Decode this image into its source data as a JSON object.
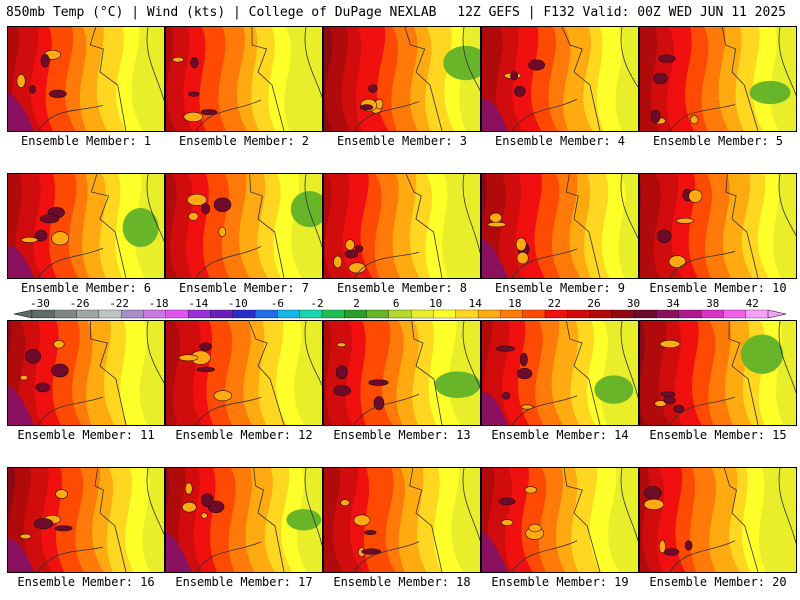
{
  "header": {
    "left": "850mb Temp (°C) | Wind (kts) | College of DuPage NEXLAB",
    "right": "12Z GEFS | F132 Valid: 00Z WED JUN 11 2025"
  },
  "members": [
    {
      "label": "Ensemble Member: 1"
    },
    {
      "label": "Ensemble Member: 2"
    },
    {
      "label": "Ensemble Member: 3"
    },
    {
      "label": "Ensemble Member: 4"
    },
    {
      "label": "Ensemble Member: 5"
    },
    {
      "label": "Ensemble Member: 6"
    },
    {
      "label": "Ensemble Member: 7"
    },
    {
      "label": "Ensemble Member: 8"
    },
    {
      "label": "Ensemble Member: 9"
    },
    {
      "label": "Ensemble Member: 10"
    },
    {
      "label": "Ensemble Member: 11"
    },
    {
      "label": "Ensemble Member: 12"
    },
    {
      "label": "Ensemble Member: 13"
    },
    {
      "label": "Ensemble Member: 14"
    },
    {
      "label": "Ensemble Member: 15"
    },
    {
      "label": "Ensemble Member: 16"
    },
    {
      "label": "Ensemble Member: 17"
    },
    {
      "label": "Ensemble Member: 18"
    },
    {
      "label": "Ensemble Member: 19"
    },
    {
      "label": "Ensemble Member: 20"
    }
  ],
  "colorbar": {
    "labels": [
      "-30",
      "-26",
      "-22",
      "-18",
      "-14",
      "-10",
      "-6",
      "-2",
      "2",
      "6",
      "10",
      "14",
      "18",
      "22",
      "26",
      "30",
      "34",
      "38",
      "42"
    ],
    "colors": [
      "#5e6b68",
      "#7e8784",
      "#9ea6a3",
      "#bdc4c1",
      "#a98dc9",
      "#c77ae0",
      "#e055f0",
      "#9b30d8",
      "#6a1fb8",
      "#2a2dc9",
      "#1f6fe8",
      "#14b5e8",
      "#16d6b0",
      "#1fbf55",
      "#27a02a",
      "#69b52a",
      "#b5d82c",
      "#e8ef2a",
      "#ffff29",
      "#ffd620",
      "#ffaa10",
      "#ff7a08",
      "#ff4a04",
      "#f01010",
      "#d00c0c",
      "#b00a0a",
      "#8c0a14",
      "#6e0a2a",
      "#8c1060",
      "#b01a90",
      "#d830c8",
      "#f060e8",
      "#f8a0f8"
    ]
  },
  "legend": {
    "unit": "°C"
  }
}
